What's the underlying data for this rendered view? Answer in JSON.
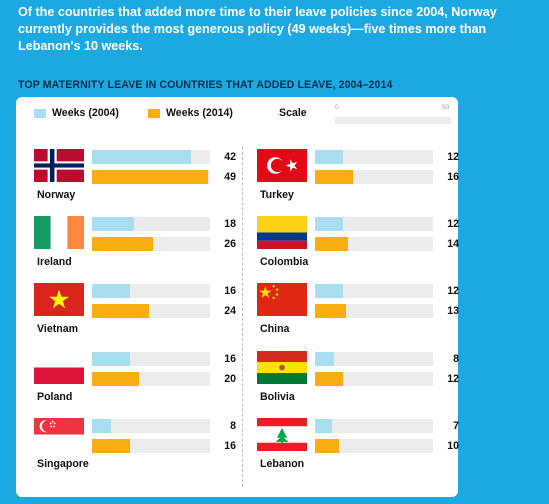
{
  "intro_text": "Of the countries that added more time to their leave policies since 2004, Norway currently provides the most generous policy (49 weeks)—five times more than Lebanon's 10 weeks.",
  "chart_data": {
    "type": "bar",
    "title": "TOP MATERNITY LEAVE IN COUNTRIES THAT ADDED LEAVE, 2004–2014",
    "legend": [
      {
        "label": "Weeks (2004)",
        "color": "#a9def0"
      },
      {
        "label": "Weeks (2014)",
        "color": "#f9ad10"
      }
    ],
    "scale": {
      "label": "Scale",
      "min": "0",
      "max": "50"
    },
    "xlim": [
      0,
      50
    ],
    "categories": [
      "Norway",
      "Ireland",
      "Vietnam",
      "Poland",
      "Singapore",
      "Turkey",
      "Colombia",
      "China",
      "Bolivia",
      "Lebanon"
    ],
    "series": [
      {
        "name": "Weeks (2004)",
        "values": [
          42,
          18,
          16,
          16,
          8,
          12,
          12,
          12,
          8,
          7
        ]
      },
      {
        "name": "Weeks (2014)",
        "values": [
          49,
          26,
          24,
          20,
          16,
          16,
          14,
          13,
          12,
          10
        ]
      }
    ],
    "flags": [
      "norway-flag",
      "ireland-flag",
      "vietnam-flag",
      "poland-flag",
      "singapore-flag",
      "turkey-flag",
      "colombia-flag",
      "china-flag",
      "bolivia-flag",
      "lebanon-flag"
    ]
  }
}
